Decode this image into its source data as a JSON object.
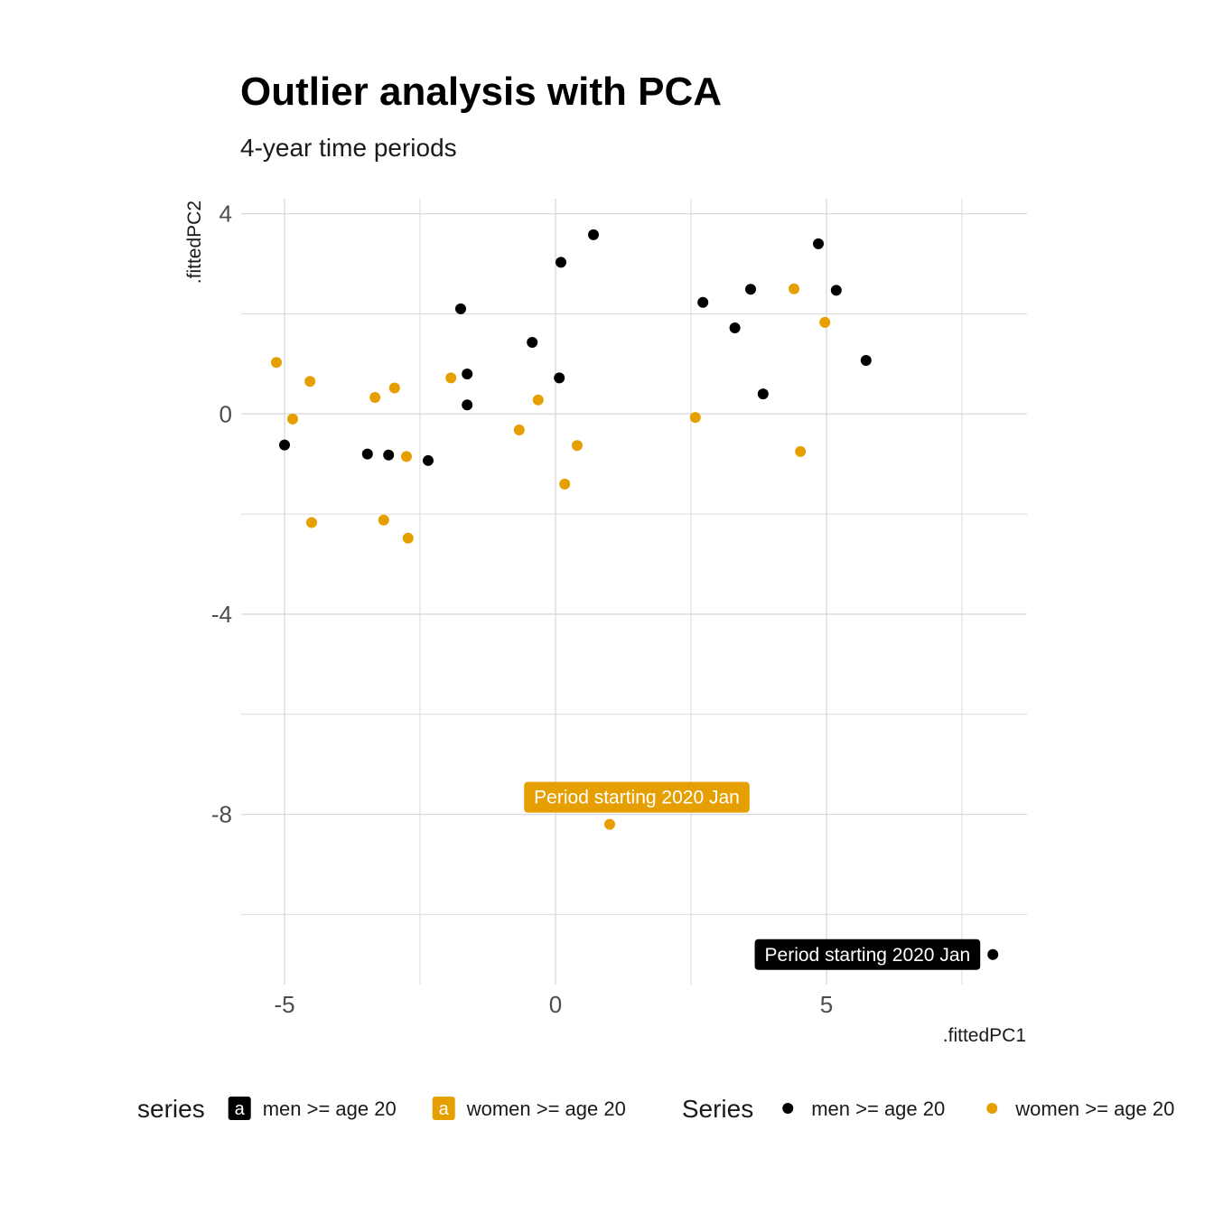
{
  "chart_data": {
    "type": "scatter",
    "title": "Outlier analysis with PCA",
    "subtitle": "4-year time periods",
    "xlabel": ".fittedPC1",
    "ylabel": ".fittedPC2",
    "xlim": [
      -5.8,
      8.7
    ],
    "ylim": [
      -11.4,
      4.3
    ],
    "x_ticks": [
      -5,
      0,
      5
    ],
    "y_ticks": [
      4,
      0,
      -4,
      -8
    ],
    "grid": true,
    "colors": {
      "men >= age 20": "#000000",
      "women >= age 20": "#E69F00"
    },
    "series": [
      {
        "name": "men >= age 20",
        "color": "#000000",
        "points": [
          [
            -5.0,
            -0.62
          ],
          [
            -3.47,
            -0.8
          ],
          [
            -3.08,
            -0.82
          ],
          [
            -2.35,
            -0.93
          ],
          [
            -1.75,
            2.1
          ],
          [
            -1.63,
            0.8
          ],
          [
            -1.63,
            0.18
          ],
          [
            -0.43,
            1.43
          ],
          [
            0.07,
            0.72
          ],
          [
            0.1,
            3.03
          ],
          [
            0.7,
            3.58
          ],
          [
            2.72,
            2.23
          ],
          [
            3.31,
            1.72
          ],
          [
            3.6,
            2.49
          ],
          [
            3.83,
            0.4
          ],
          [
            4.85,
            3.4
          ],
          [
            5.18,
            2.47
          ],
          [
            5.73,
            1.07
          ],
          [
            8.07,
            -10.8
          ]
        ]
      },
      {
        "name": "women >= age 20",
        "color": "#E69F00",
        "points": [
          [
            -5.15,
            1.03
          ],
          [
            -4.53,
            0.65
          ],
          [
            -4.85,
            -0.1
          ],
          [
            -4.5,
            -2.17
          ],
          [
            -3.33,
            0.33
          ],
          [
            -2.97,
            0.52
          ],
          [
            -3.17,
            -2.12
          ],
          [
            -2.75,
            -0.85
          ],
          [
            -2.72,
            -2.48
          ],
          [
            -1.93,
            0.72
          ],
          [
            -0.67,
            -0.32
          ],
          [
            -0.32,
            0.28
          ],
          [
            0.17,
            -1.4
          ],
          [
            0.4,
            -0.63
          ],
          [
            1.0,
            -8.2
          ],
          [
            2.58,
            -0.07
          ],
          [
            4.4,
            2.5
          ],
          [
            4.97,
            1.83
          ],
          [
            4.52,
            -0.75
          ]
        ]
      }
    ],
    "annotations": [
      {
        "text": "Period starting 2020 Jan",
        "series": "women >= age 20",
        "x": 1.0,
        "y": -8.2,
        "placement": "above"
      },
      {
        "text": "Period starting 2020 Jan",
        "series": "men >= age 20",
        "x": 8.07,
        "y": -10.8,
        "placement": "left"
      }
    ],
    "legends": [
      {
        "title": "series",
        "key": "a",
        "entries": [
          {
            "label": "men >= age 20",
            "color": "#000000"
          },
          {
            "label": "women >= age 20",
            "color": "#E69F00"
          }
        ]
      },
      {
        "title": "Series",
        "entries": [
          {
            "label": "men >= age 20",
            "color": "#000000"
          },
          {
            "label": "women >= age 20",
            "color": "#E69F00"
          }
        ]
      }
    ],
    "legend_position": "bottom"
  }
}
